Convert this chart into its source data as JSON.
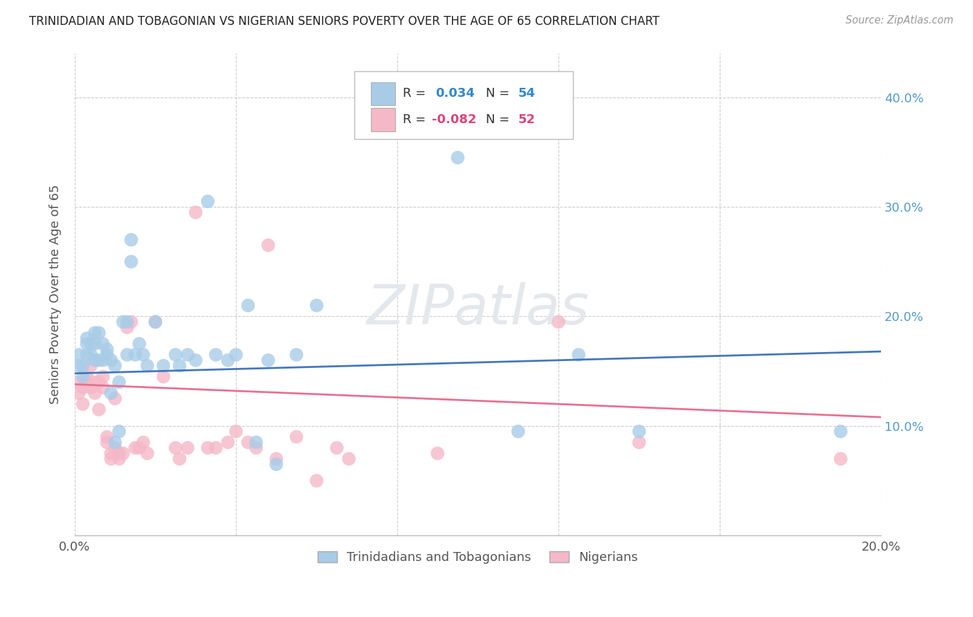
{
  "title": "TRINIDADIAN AND TOBAGONIAN VS NIGERIAN SENIORS POVERTY OVER THE AGE OF 65 CORRELATION CHART",
  "source": "Source: ZipAtlas.com",
  "ylabel": "Seniors Poverty Over the Age of 65",
  "xlim": [
    0.0,
    0.2
  ],
  "ylim": [
    0.0,
    0.44
  ],
  "xticks": [
    0.0,
    0.04,
    0.08,
    0.12,
    0.16,
    0.2
  ],
  "yticks": [
    0.0,
    0.1,
    0.2,
    0.3,
    0.4
  ],
  "blue_color": "#a8cce8",
  "pink_color": "#f5b8c8",
  "blue_line_color": "#4477bb",
  "pink_line_color": "#e87090",
  "blue_scatter": [
    [
      0.001,
      0.155
    ],
    [
      0.001,
      0.165
    ],
    [
      0.002,
      0.155
    ],
    [
      0.002,
      0.145
    ],
    [
      0.003,
      0.165
    ],
    [
      0.003,
      0.175
    ],
    [
      0.003,
      0.18
    ],
    [
      0.004,
      0.175
    ],
    [
      0.004,
      0.165
    ],
    [
      0.005,
      0.16
    ],
    [
      0.005,
      0.175
    ],
    [
      0.005,
      0.185
    ],
    [
      0.006,
      0.16
    ],
    [
      0.006,
      0.185
    ],
    [
      0.007,
      0.175
    ],
    [
      0.007,
      0.16
    ],
    [
      0.008,
      0.165
    ],
    [
      0.008,
      0.17
    ],
    [
      0.009,
      0.13
    ],
    [
      0.009,
      0.16
    ],
    [
      0.01,
      0.085
    ],
    [
      0.01,
      0.155
    ],
    [
      0.011,
      0.14
    ],
    [
      0.011,
      0.095
    ],
    [
      0.012,
      0.195
    ],
    [
      0.013,
      0.165
    ],
    [
      0.013,
      0.195
    ],
    [
      0.014,
      0.25
    ],
    [
      0.014,
      0.27
    ],
    [
      0.015,
      0.165
    ],
    [
      0.016,
      0.175
    ],
    [
      0.017,
      0.165
    ],
    [
      0.018,
      0.155
    ],
    [
      0.02,
      0.195
    ],
    [
      0.022,
      0.155
    ],
    [
      0.025,
      0.165
    ],
    [
      0.026,
      0.155
    ],
    [
      0.028,
      0.165
    ],
    [
      0.03,
      0.16
    ],
    [
      0.033,
      0.305
    ],
    [
      0.035,
      0.165
    ],
    [
      0.038,
      0.16
    ],
    [
      0.04,
      0.165
    ],
    [
      0.043,
      0.21
    ],
    [
      0.045,
      0.085
    ],
    [
      0.048,
      0.16
    ],
    [
      0.05,
      0.065
    ],
    [
      0.055,
      0.165
    ],
    [
      0.06,
      0.21
    ],
    [
      0.095,
      0.345
    ],
    [
      0.11,
      0.095
    ],
    [
      0.125,
      0.165
    ],
    [
      0.14,
      0.095
    ],
    [
      0.19,
      0.095
    ]
  ],
  "pink_scatter": [
    [
      0.001,
      0.13
    ],
    [
      0.001,
      0.14
    ],
    [
      0.002,
      0.12
    ],
    [
      0.002,
      0.135
    ],
    [
      0.003,
      0.14
    ],
    [
      0.003,
      0.145
    ],
    [
      0.004,
      0.135
    ],
    [
      0.004,
      0.155
    ],
    [
      0.005,
      0.13
    ],
    [
      0.005,
      0.14
    ],
    [
      0.006,
      0.115
    ],
    [
      0.006,
      0.14
    ],
    [
      0.007,
      0.135
    ],
    [
      0.007,
      0.145
    ],
    [
      0.008,
      0.085
    ],
    [
      0.008,
      0.09
    ],
    [
      0.009,
      0.07
    ],
    [
      0.009,
      0.075
    ],
    [
      0.01,
      0.08
    ],
    [
      0.01,
      0.125
    ],
    [
      0.011,
      0.075
    ],
    [
      0.011,
      0.07
    ],
    [
      0.012,
      0.075
    ],
    [
      0.013,
      0.19
    ],
    [
      0.014,
      0.195
    ],
    [
      0.015,
      0.08
    ],
    [
      0.016,
      0.08
    ],
    [
      0.017,
      0.085
    ],
    [
      0.018,
      0.075
    ],
    [
      0.02,
      0.195
    ],
    [
      0.022,
      0.145
    ],
    [
      0.025,
      0.08
    ],
    [
      0.026,
      0.07
    ],
    [
      0.028,
      0.08
    ],
    [
      0.03,
      0.295
    ],
    [
      0.033,
      0.08
    ],
    [
      0.035,
      0.08
    ],
    [
      0.038,
      0.085
    ],
    [
      0.04,
      0.095
    ],
    [
      0.043,
      0.085
    ],
    [
      0.045,
      0.08
    ],
    [
      0.048,
      0.265
    ],
    [
      0.05,
      0.07
    ],
    [
      0.055,
      0.09
    ],
    [
      0.06,
      0.05
    ],
    [
      0.065,
      0.08
    ],
    [
      0.068,
      0.07
    ],
    [
      0.09,
      0.075
    ],
    [
      0.12,
      0.195
    ],
    [
      0.14,
      0.085
    ],
    [
      0.19,
      0.07
    ]
  ],
  "blue_regline": [
    0.0,
    0.2,
    0.148,
    0.168
  ],
  "pink_regline": [
    0.0,
    0.2,
    0.138,
    0.108
  ],
  "background_color": "#ffffff",
  "grid_color": "#cccccc",
  "watermark": "ZIPatlas",
  "watermark_color": "#e4e8ec",
  "tick_color": "#5599cc",
  "label_color": "#555555"
}
